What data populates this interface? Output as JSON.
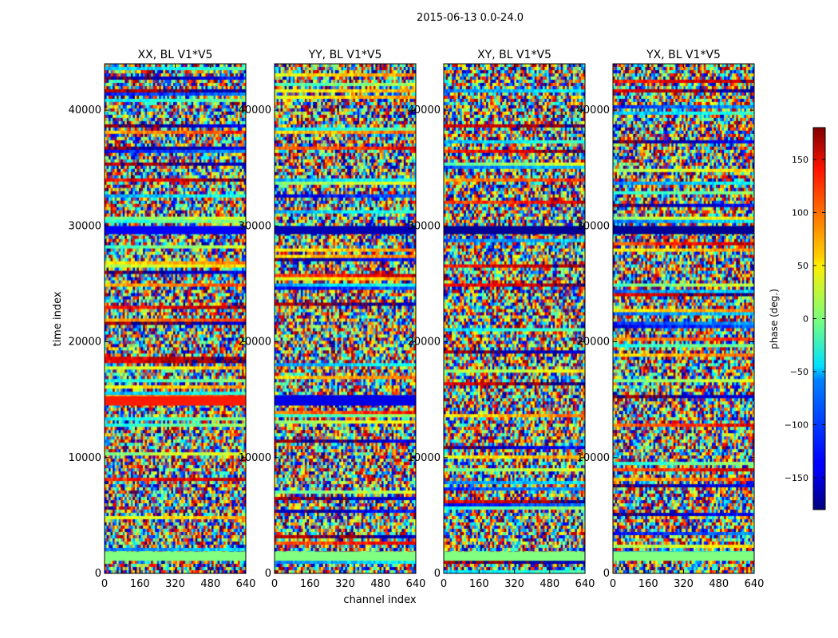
{
  "figure": {
    "suptitle": "2015-06-13 0.0-24.0",
    "ylabel": "time index",
    "xlabel": "channel index"
  },
  "chart_data": {
    "type": "heatmap",
    "x_range": [
      0,
      640
    ],
    "y_range": [
      0,
      44000
    ],
    "x_ticks": [
      0,
      160,
      320,
      480,
      640
    ],
    "y_ticks": [
      0,
      10000,
      20000,
      30000,
      40000
    ],
    "panels": [
      {
        "title": "XX, BL V1*V5",
        "style": "xx"
      },
      {
        "title": "YY, BL V1*V5",
        "style": "yy"
      },
      {
        "title": "XY, BL V1*V5",
        "style": "xy"
      },
      {
        "title": "YX, BL V1*V5",
        "style": "xy"
      }
    ],
    "colorbar": {
      "label": "phase (deg.)",
      "range": [
        -180,
        180
      ],
      "ticks": [
        150,
        100,
        50,
        0,
        -50,
        -100,
        -150
      ],
      "tick_labels": [
        "150",
        "100",
        "50",
        "0",
        "−50",
        "−100",
        "−150"
      ],
      "colormap": "jet"
    }
  }
}
